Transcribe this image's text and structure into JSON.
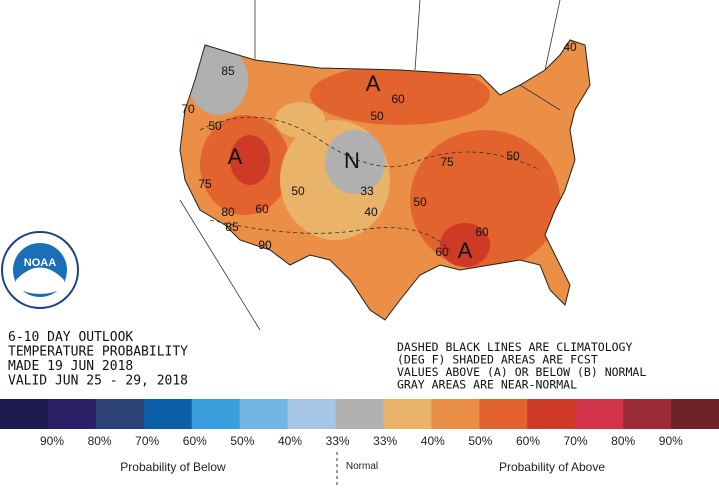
{
  "logo": "NOAA",
  "title_lines": [
    "6-10 DAY OUTLOOK",
    "TEMPERATURE PROBABILITY",
    "MADE  19 JUN 2018",
    "VALID  JUN 25 - 29, 2018"
  ],
  "note_lines": [
    "DASHED BLACK LINES ARE CLIMATOLOGY",
    "(DEG F) SHADED AREAS ARE FCST",
    "VALUES ABOVE (A) OR BELOW (B) NORMAL",
    "GRAY AREAS ARE NEAR-NORMAL"
  ],
  "map_labels": [
    "A",
    "A",
    "A",
    "N",
    "60",
    "50",
    "50",
    "70",
    "75",
    "60",
    "50",
    "33",
    "40",
    "50",
    "75",
    "50",
    "60",
    "60",
    "90",
    "80",
    "85",
    "40",
    "85"
  ],
  "legend": {
    "colors": [
      "#1f1a4f",
      "#2b2066",
      "#2d4378",
      "#0b5ea8",
      "#3a9ede",
      "#72b6e6",
      "#a5c6e6",
      "#b0b0b0",
      "#e9b46a",
      "#ea8f45",
      "#e3632f",
      "#cf3a26",
      "#d2334a",
      "#9d2b36",
      "#6e2426"
    ],
    "labels": [
      "90%",
      "80%",
      "70%",
      "60%",
      "50%",
      "40%",
      "33%",
      "33%",
      "40%",
      "50%",
      "60%",
      "70%",
      "80%",
      "90%"
    ],
    "below": "Probability of Below",
    "normal": "Normal",
    "above": "Probability of Above"
  }
}
